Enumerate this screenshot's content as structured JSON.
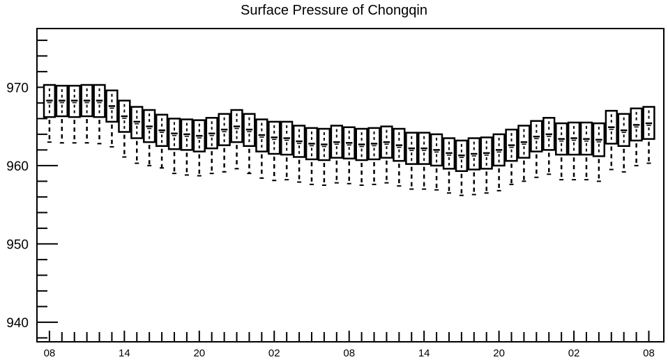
{
  "chart_data": {
    "type": "box",
    "title": "Surface Pressure of Chongqin",
    "xlabel": "",
    "ylabel": "",
    "ylim": [
      937.5,
      977.5
    ],
    "y_ticks": [
      940,
      950,
      960,
      970
    ],
    "x_tick_labels": [
      "08",
      "14",
      "20",
      "02",
      "08",
      "14",
      "20",
      "02",
      "08"
    ],
    "x_tick_hours": [
      0,
      6,
      12,
      18,
      24,
      30,
      36,
      42,
      48
    ],
    "x_range_hours": [
      -1,
      49.2
    ],
    "grid": false,
    "series": [
      {
        "x_hours": [
          0,
          1,
          2,
          3,
          4,
          5,
          6,
          7,
          8,
          9,
          10,
          11,
          12,
          13,
          14,
          15,
          16,
          17,
          18,
          19,
          20,
          21,
          22,
          23,
          24,
          25,
          26,
          27,
          28,
          29,
          30,
          31,
          32,
          33,
          34,
          35,
          36,
          37,
          38,
          39,
          40,
          41,
          42,
          43,
          44,
          45,
          46,
          47,
          48
        ],
        "median": [
          968.3,
          968.3,
          968.3,
          968.3,
          968.3,
          967.6,
          966.3,
          965.6,
          965.0,
          964.5,
          964.1,
          964.0,
          963.8,
          964.1,
          964.6,
          965.0,
          964.6,
          963.9,
          963.6,
          963.5,
          963.1,
          962.8,
          962.7,
          963.0,
          962.9,
          962.7,
          962.8,
          963.0,
          962.6,
          962.2,
          962.2,
          962.0,
          961.6,
          961.3,
          961.5,
          961.6,
          962.0,
          962.6,
          963.0,
          963.7,
          964.0,
          963.4,
          963.5,
          963.4,
          963.3,
          964.9,
          964.5,
          965.2,
          965.4
        ],
        "q1": [
          966.2,
          966.3,
          966.2,
          966.3,
          966.2,
          965.6,
          964.3,
          963.5,
          963.0,
          962.5,
          962.1,
          962.0,
          961.8,
          962.2,
          962.6,
          963.0,
          962.5,
          961.8,
          961.5,
          961.4,
          961.1,
          960.8,
          960.7,
          961.0,
          960.9,
          960.7,
          960.8,
          961.0,
          960.6,
          960.2,
          960.2,
          960.0,
          959.6,
          959.3,
          959.5,
          959.6,
          960.0,
          960.6,
          961.0,
          961.8,
          962.0,
          961.4,
          961.4,
          961.4,
          961.2,
          962.8,
          962.5,
          963.2,
          963.4
        ],
        "q3": [
          970.3,
          970.2,
          970.2,
          970.3,
          970.3,
          969.6,
          968.3,
          967.5,
          967.1,
          966.5,
          966.0,
          965.9,
          965.8,
          966.1,
          966.6,
          967.1,
          966.6,
          965.9,
          965.6,
          965.6,
          965.1,
          964.8,
          964.7,
          965.1,
          964.9,
          964.7,
          964.8,
          965.0,
          964.7,
          964.2,
          964.2,
          964.0,
          963.5,
          963.2,
          963.5,
          963.6,
          964.0,
          964.6,
          965.1,
          965.7,
          966.1,
          965.4,
          965.5,
          965.5,
          965.4,
          967.0,
          966.6,
          967.3,
          967.5
        ],
        "whisker_low": [
          963.0,
          962.9,
          962.9,
          962.9,
          962.8,
          962.4,
          961.1,
          960.3,
          960.0,
          959.7,
          959.0,
          958.8,
          958.7,
          959.0,
          959.2,
          959.6,
          959.0,
          958.4,
          958.1,
          958.2,
          957.9,
          957.6,
          957.5,
          957.8,
          957.7,
          957.5,
          957.6,
          957.8,
          957.4,
          957.0,
          957.0,
          956.9,
          956.5,
          956.2,
          956.3,
          956.5,
          956.8,
          957.6,
          958.0,
          958.5,
          958.9,
          958.2,
          958.2,
          958.2,
          958.0,
          959.5,
          959.2,
          960.0,
          960.3
        ]
      }
    ]
  }
}
